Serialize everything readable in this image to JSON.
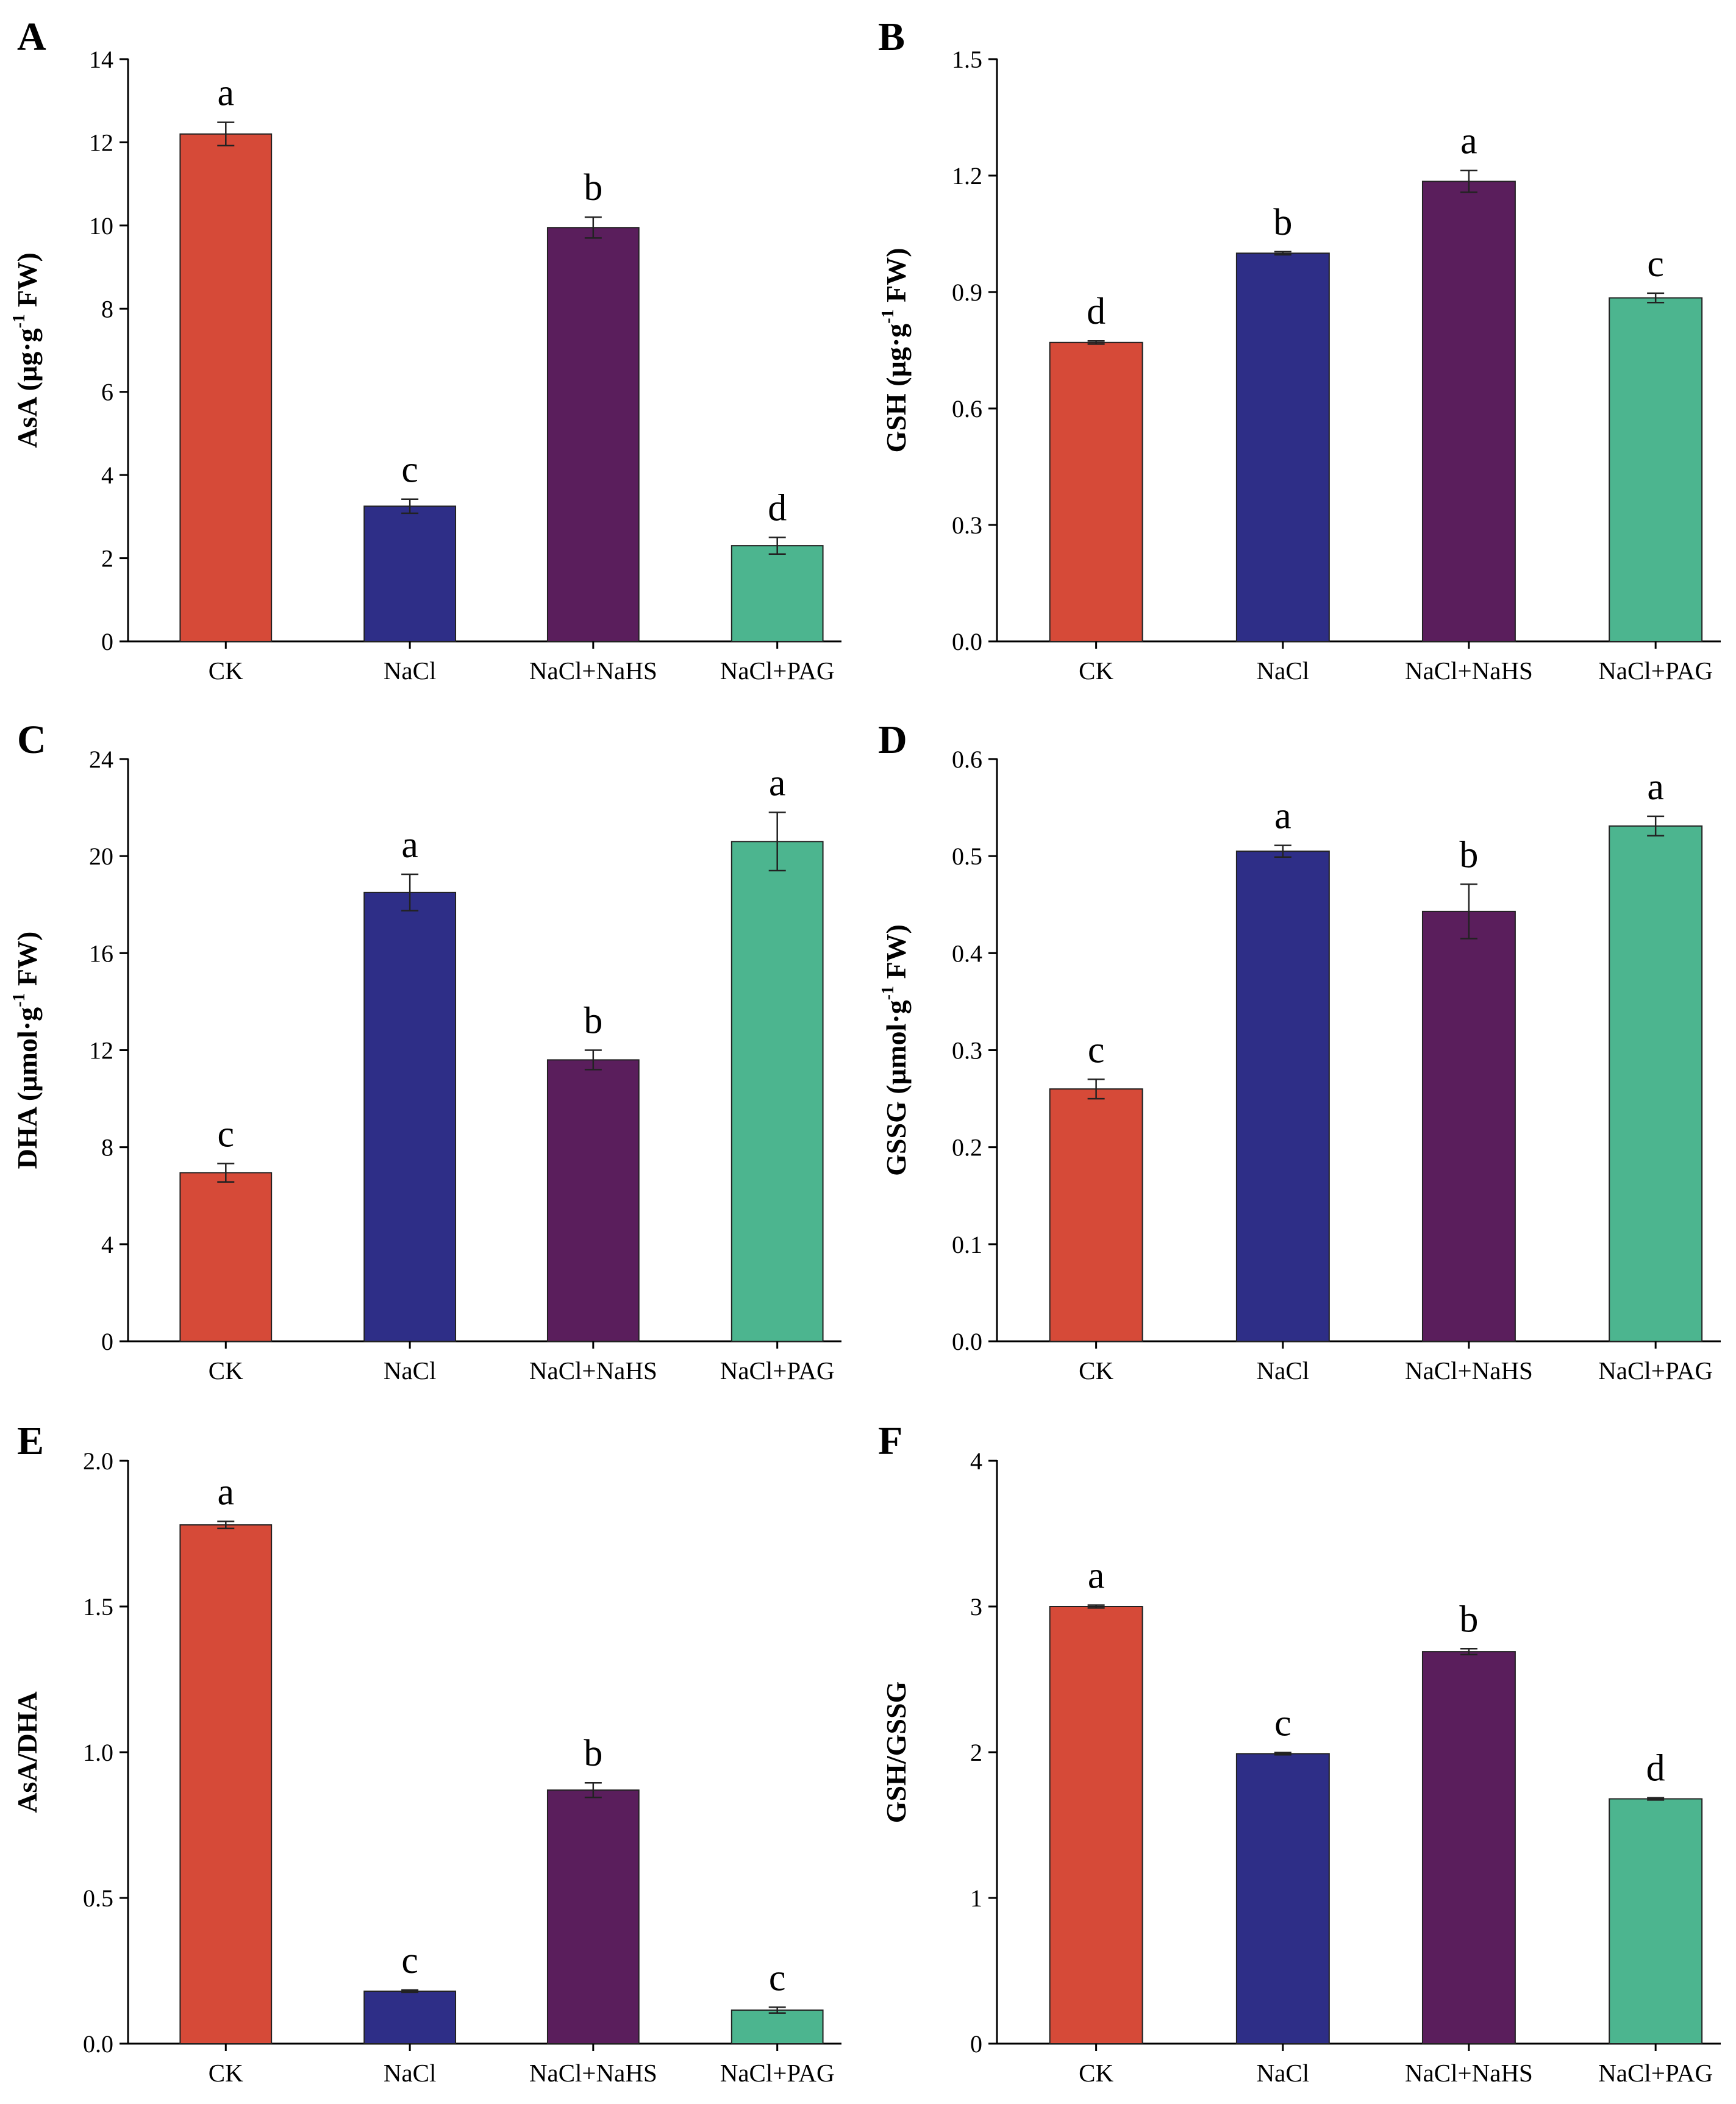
{
  "colors": {
    "CK": "#d64a38",
    "NaCl": "#2e2e87",
    "NaCl+NaHS": "#5a1e5c",
    "NaCl+PAG": "#4cb58f",
    "axis": "#000000"
  },
  "chart_data": [
    {
      "type": "bar",
      "panel": "A",
      "categories": [
        "CK",
        "NaCl",
        "NaCl+NaHS",
        "NaCl+PAG"
      ],
      "values": [
        12.2,
        3.25,
        9.95,
        2.3
      ],
      "errors": [
        0.28,
        0.17,
        0.25,
        0.2
      ],
      "significance": [
        "a",
        "c",
        "b",
        "d"
      ],
      "ylabel": {
        "pre": "AsA (µg·g",
        "sup": "-1",
        "post": " FW)"
      },
      "ylim": [
        0,
        14
      ],
      "yticks": [
        0,
        2,
        4,
        6,
        8,
        10,
        12,
        14
      ],
      "yticklabels": [
        "0",
        "2",
        "4",
        "6",
        "8",
        "10",
        "12",
        "14"
      ]
    },
    {
      "type": "bar",
      "panel": "B",
      "categories": [
        "CK",
        "NaCl",
        "NaCl+NaHS",
        "NaCl+PAG"
      ],
      "values": [
        0.77,
        1.0,
        1.185,
        0.885
      ],
      "errors": [
        0.004,
        0.004,
        0.028,
        0.012
      ],
      "significance": [
        "d",
        "b",
        "a",
        "c"
      ],
      "ylabel": {
        "pre": "GSH (µg·g",
        "sup": "-1",
        "post": " FW)"
      },
      "ylim": [
        0,
        1.5
      ],
      "yticks": [
        0,
        0.3,
        0.6,
        0.9,
        1.2,
        1.5
      ],
      "yticklabels": [
        "0.0",
        "0.3",
        "0.6",
        "0.9",
        "1.2",
        "1.5"
      ]
    },
    {
      "type": "bar",
      "panel": "C",
      "categories": [
        "CK",
        "NaCl",
        "NaCl+NaHS",
        "NaCl+PAG"
      ],
      "values": [
        6.95,
        18.5,
        11.6,
        20.6
      ],
      "errors": [
        0.38,
        0.75,
        0.4,
        1.2
      ],
      "significance": [
        "c",
        "a",
        "b",
        "a"
      ],
      "ylabel": {
        "pre": "DHA (µmol·g",
        "sup": "-1",
        "post": " FW)"
      },
      "ylim": [
        0,
        24
      ],
      "yticks": [
        0,
        4,
        8,
        12,
        16,
        20,
        24
      ],
      "yticklabels": [
        "0",
        "4",
        "8",
        "12",
        "16",
        "20",
        "24"
      ]
    },
    {
      "type": "bar",
      "panel": "D",
      "categories": [
        "CK",
        "NaCl",
        "NaCl+NaHS",
        "NaCl+PAG"
      ],
      "values": [
        0.26,
        0.505,
        0.443,
        0.531
      ],
      "errors": [
        0.01,
        0.006,
        0.028,
        0.01
      ],
      "significance": [
        "c",
        "a",
        "b",
        "a"
      ],
      "ylabel": {
        "pre": "GSSG (µmol·g",
        "sup": "-1",
        "post": " FW)"
      },
      "ylim": [
        0,
        0.6
      ],
      "yticks": [
        0,
        0.1,
        0.2,
        0.3,
        0.4,
        0.5,
        0.6
      ],
      "yticklabels": [
        "0.0",
        "0.1",
        "0.2",
        "0.3",
        "0.4",
        "0.5",
        "0.6"
      ]
    },
    {
      "type": "bar",
      "panel": "E",
      "categories": [
        "CK",
        "NaCl",
        "NaCl+NaHS",
        "NaCl+PAG"
      ],
      "values": [
        1.78,
        0.18,
        0.87,
        0.115
      ],
      "errors": [
        0.012,
        0.004,
        0.025,
        0.01
      ],
      "significance": [
        "a",
        "c",
        "b",
        "c"
      ],
      "ylabel": {
        "pre": "AsA/DHA",
        "sup": "",
        "post": ""
      },
      "ylim": [
        0,
        2.0
      ],
      "yticks": [
        0,
        0.5,
        1.0,
        1.5,
        2.0
      ],
      "yticklabels": [
        "0.0",
        "0.5",
        "1.0",
        "1.5",
        "2.0"
      ]
    },
    {
      "type": "bar",
      "panel": "F",
      "categories": [
        "CK",
        "NaCl",
        "NaCl+NaHS",
        "NaCl+PAG"
      ],
      "values": [
        3.0,
        1.99,
        2.69,
        1.68
      ],
      "errors": [
        0.01,
        0.008,
        0.02,
        0.008
      ],
      "significance": [
        "a",
        "c",
        "b",
        "d"
      ],
      "ylabel": {
        "pre": "GSH/GSSG",
        "sup": "",
        "post": ""
      },
      "ylim": [
        0,
        4
      ],
      "yticks": [
        0,
        1,
        2,
        3,
        4
      ],
      "yticklabels": [
        "0",
        "1",
        "2",
        "3",
        "4"
      ]
    }
  ]
}
